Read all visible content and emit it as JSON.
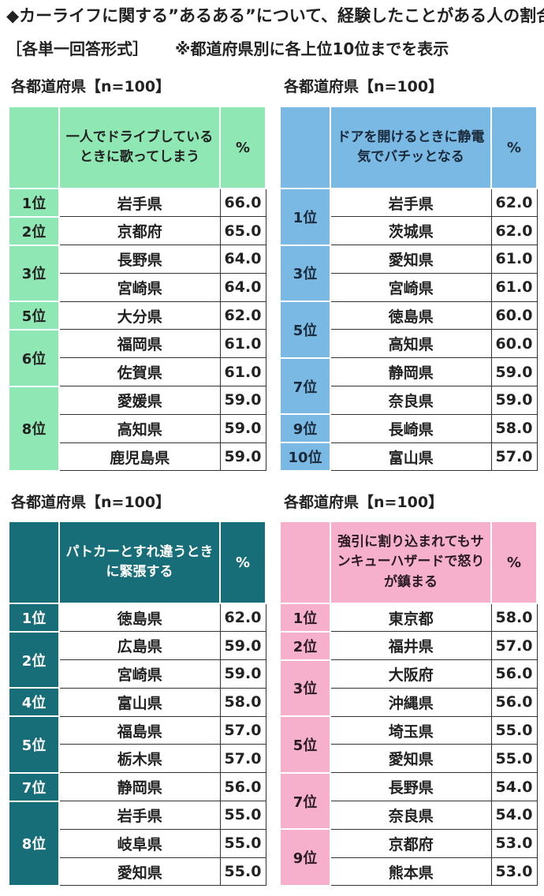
{
  "title": "◆カーライフに関する”あるある”について、経験したことがある人の割合",
  "subtitle": "［各単一回答形式］",
  "note": "※都道府県別に各上位10位までを表示",
  "tables": [
    {
      "label": "各都道府県【n=100】",
      "question": "一人でドライブしているときに歌ってしまう",
      "pct_header": "%",
      "groups": [
        {
          "rank": "1位",
          "rows": [
            {
              "pref": "岩手県",
              "pct": "66.0"
            }
          ]
        },
        {
          "rank": "2位",
          "rows": [
            {
              "pref": "京都府",
              "pct": "65.0"
            }
          ]
        },
        {
          "rank": "3位",
          "rows": [
            {
              "pref": "長野県",
              "pct": "64.0"
            },
            {
              "pref": "宮崎県",
              "pct": "64.0"
            }
          ]
        },
        {
          "rank": "5位",
          "rows": [
            {
              "pref": "大分県",
              "pct": "62.0"
            }
          ]
        },
        {
          "rank": "6位",
          "rows": [
            {
              "pref": "福岡県",
              "pct": "61.0"
            },
            {
              "pref": "佐賀県",
              "pct": "61.0"
            }
          ]
        },
        {
          "rank": "8位",
          "rows": [
            {
              "pref": "愛媛県",
              "pct": "59.0"
            },
            {
              "pref": "高知県",
              "pct": "59.0"
            },
            {
              "pref": "鹿児島県",
              "pct": "59.0"
            }
          ]
        }
      ]
    },
    {
      "label": "各都道府県【n=100】",
      "question": "ドアを開けるときに静電気でバチッとなる",
      "pct_header": "%",
      "groups": [
        {
          "rank": "1位",
          "rows": [
            {
              "pref": "岩手県",
              "pct": "62.0"
            },
            {
              "pref": "茨城県",
              "pct": "62.0"
            }
          ]
        },
        {
          "rank": "3位",
          "rows": [
            {
              "pref": "愛知県",
              "pct": "61.0"
            },
            {
              "pref": "宮崎県",
              "pct": "61.0"
            }
          ]
        },
        {
          "rank": "5位",
          "rows": [
            {
              "pref": "徳島県",
              "pct": "60.0"
            },
            {
              "pref": "高知県",
              "pct": "60.0"
            }
          ]
        },
        {
          "rank": "7位",
          "rows": [
            {
              "pref": "静岡県",
              "pct": "59.0"
            },
            {
              "pref": "奈良県",
              "pct": "59.0"
            }
          ]
        },
        {
          "rank": "9位",
          "rows": [
            {
              "pref": "長崎県",
              "pct": "58.0"
            }
          ]
        },
        {
          "rank": "10位",
          "rows": [
            {
              "pref": "富山県",
              "pct": "57.0"
            }
          ]
        }
      ]
    },
    {
      "label": "各都道府県【n=100】",
      "question": "パトカーとすれ違うときに緊張する",
      "pct_header": "%",
      "groups": [
        {
          "rank": "1位",
          "rows": [
            {
              "pref": "徳島県",
              "pct": "62.0"
            }
          ]
        },
        {
          "rank": "2位",
          "rows": [
            {
              "pref": "広島県",
              "pct": "59.0"
            },
            {
              "pref": "宮崎県",
              "pct": "59.0"
            }
          ]
        },
        {
          "rank": "4位",
          "rows": [
            {
              "pref": "富山県",
              "pct": "58.0"
            }
          ]
        },
        {
          "rank": "5位",
          "rows": [
            {
              "pref": "福島県",
              "pct": "57.0"
            },
            {
              "pref": "栃木県",
              "pct": "57.0"
            }
          ]
        },
        {
          "rank": "7位",
          "rows": [
            {
              "pref": "静岡県",
              "pct": "56.0"
            }
          ]
        },
        {
          "rank": "8位",
          "rows": [
            {
              "pref": "岩手県",
              "pct": "55.0"
            },
            {
              "pref": "岐阜県",
              "pct": "55.0"
            },
            {
              "pref": "愛知県",
              "pct": "55.0"
            }
          ]
        }
      ]
    },
    {
      "label": "各都道府県【n=100】",
      "question": "強引に割り込まれてもサンキューハザードで怒りが鎮まる",
      "pct_header": "%",
      "groups": [
        {
          "rank": "1位",
          "rows": [
            {
              "pref": "東京都",
              "pct": "58.0"
            }
          ]
        },
        {
          "rank": "2位",
          "rows": [
            {
              "pref": "福井県",
              "pct": "57.0"
            }
          ]
        },
        {
          "rank": "3位",
          "rows": [
            {
              "pref": "大阪府",
              "pct": "56.0"
            },
            {
              "pref": "沖縄県",
              "pct": "56.0"
            }
          ]
        },
        {
          "rank": "5位",
          "rows": [
            {
              "pref": "埼玉県",
              "pct": "55.0"
            },
            {
              "pref": "愛知県",
              "pct": "55.0"
            }
          ]
        },
        {
          "rank": "7位",
          "rows": [
            {
              "pref": "長野県",
              "pct": "54.0"
            },
            {
              "pref": "奈良県",
              "pct": "54.0"
            }
          ]
        },
        {
          "rank": "9位",
          "rows": [
            {
              "pref": "京都府",
              "pct": "53.0"
            },
            {
              "pref": "熊本県",
              "pct": "53.0"
            }
          ]
        }
      ]
    }
  ]
}
